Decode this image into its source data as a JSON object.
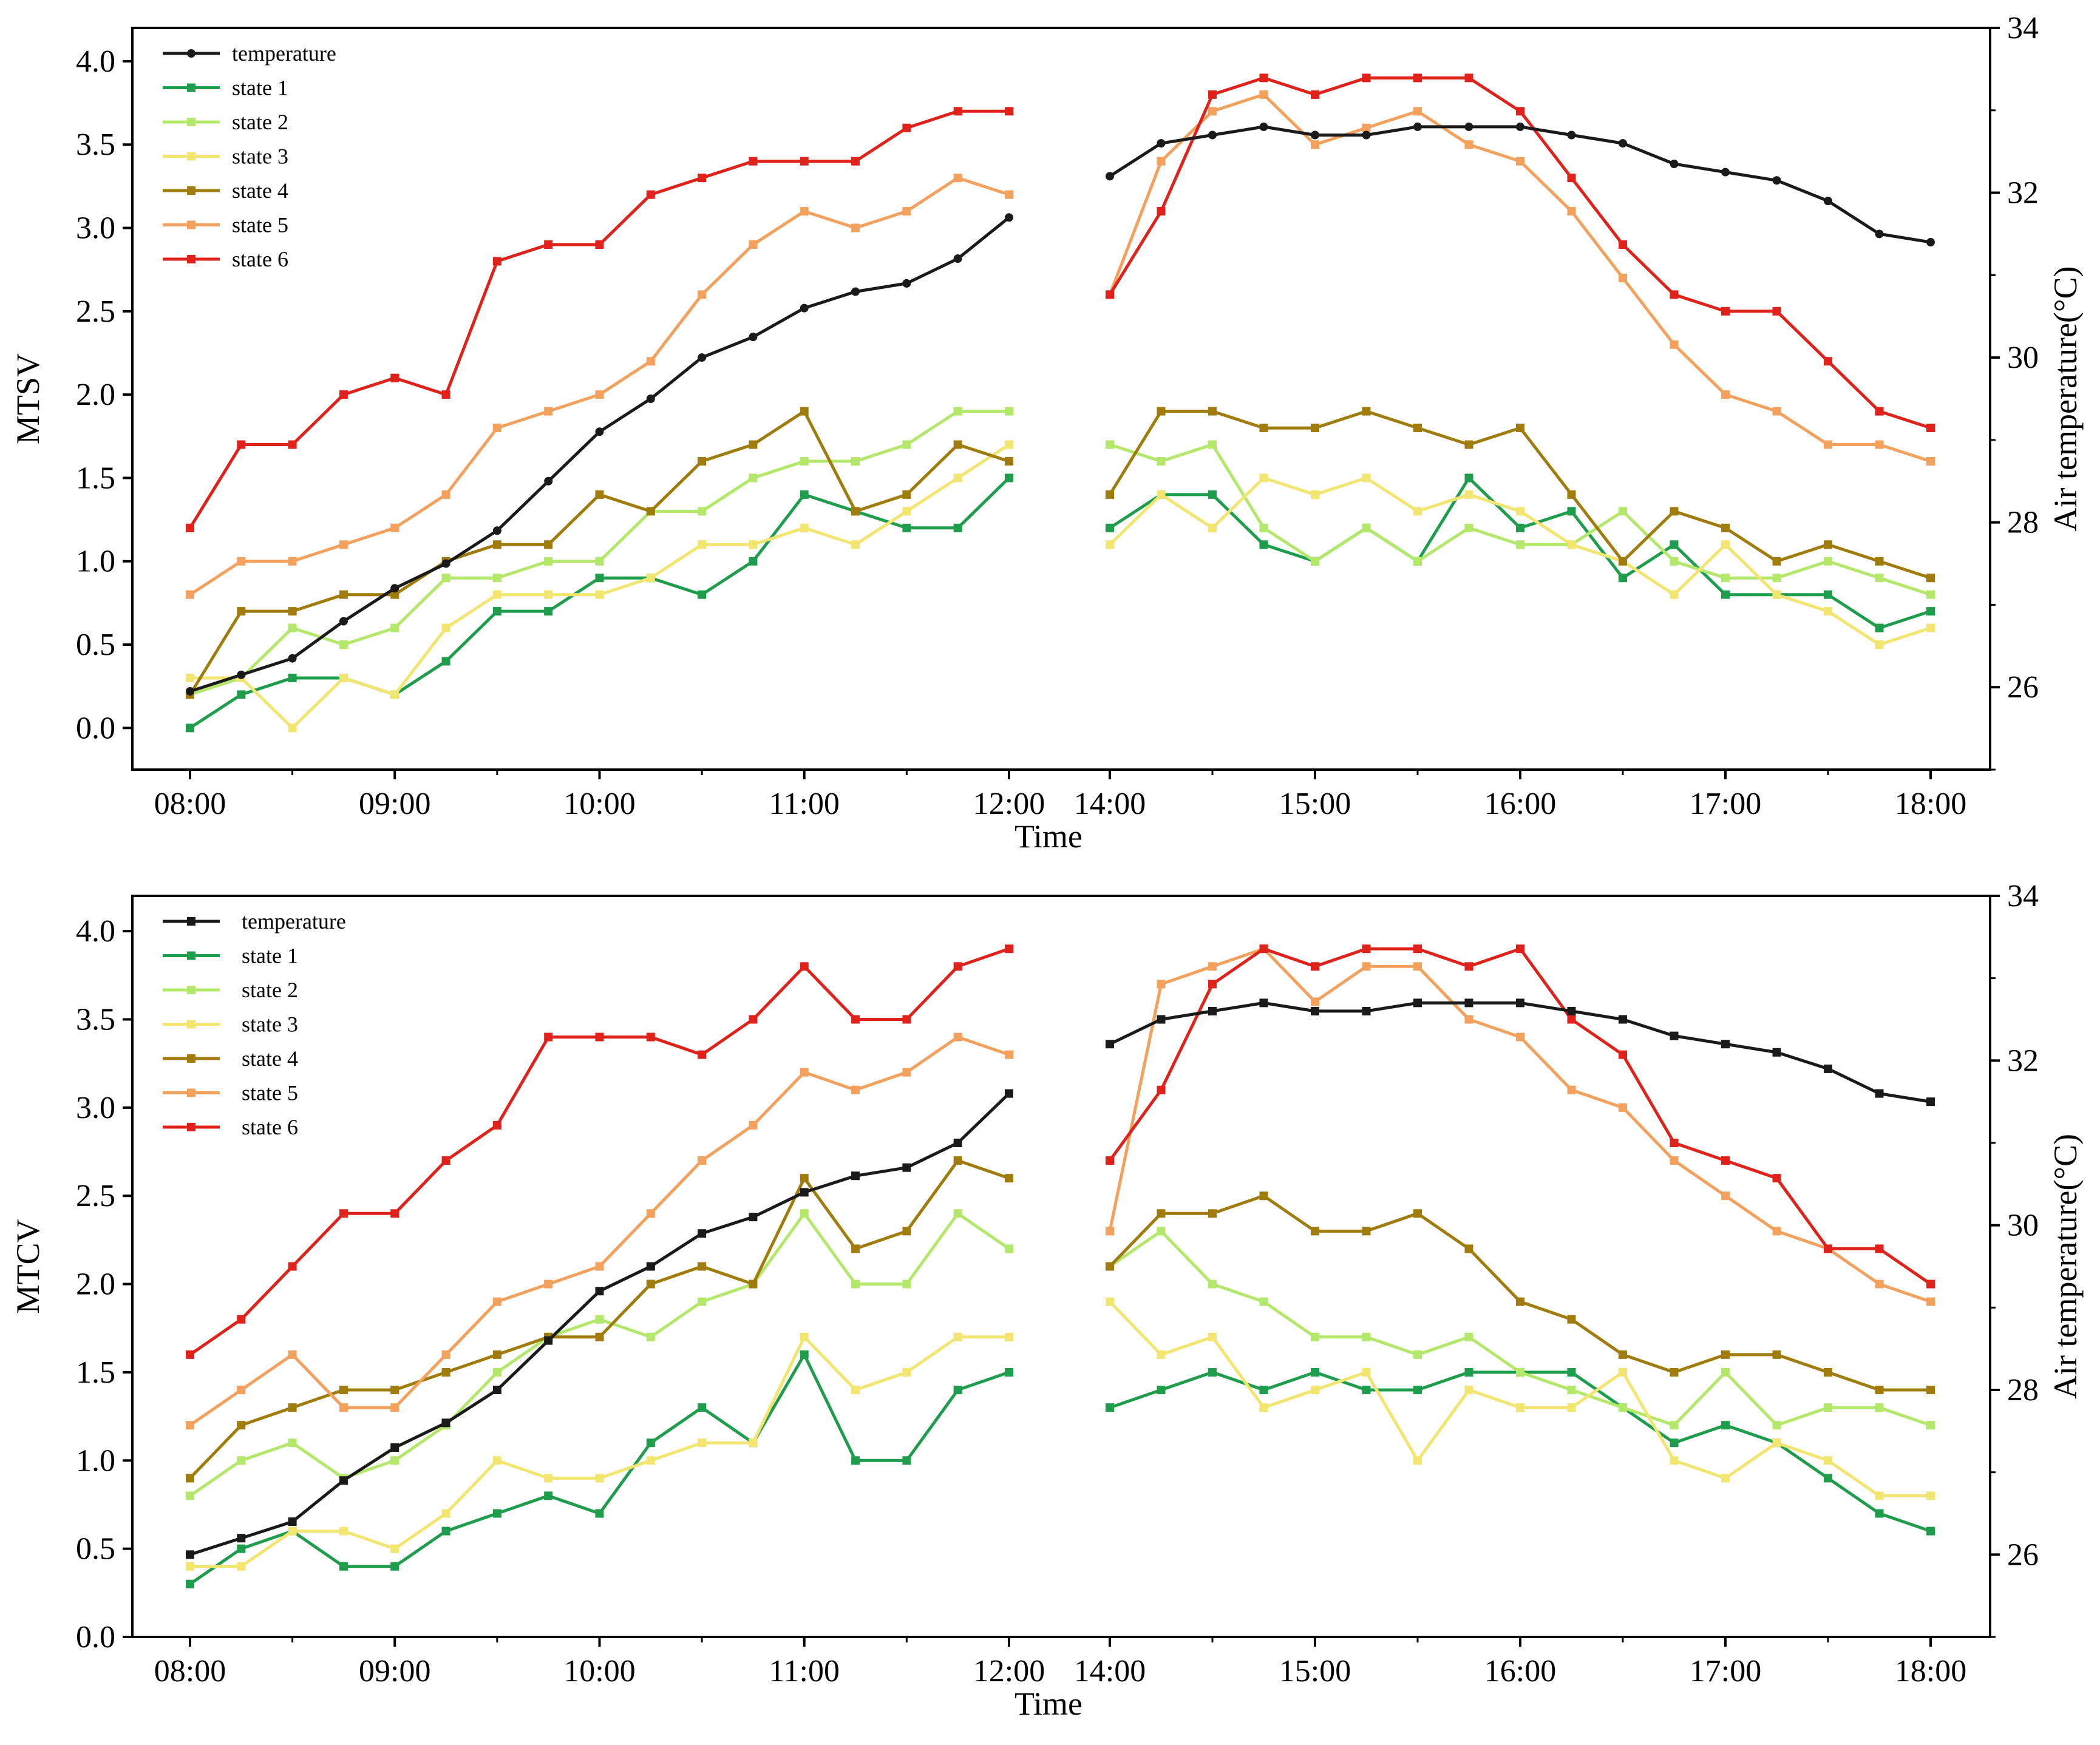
{
  "colors": {
    "temperature": "#1a1a1a",
    "state 1": "#1e9d4c",
    "state 2": "#b3e86a",
    "state 3": "#f2e670",
    "state 4": "#a07c0c",
    "state 5": "#f4a15e",
    "state 6": "#e0221b"
  },
  "chart_data": [
    {
      "type": "line",
      "ylabel": "MTSV",
      "y2label": "Air temperature(°C)",
      "xlabel": "Time",
      "ylim": [
        -0.25,
        4.2
      ],
      "y2lim": [
        25,
        34
      ],
      "yticks": [
        "0.0",
        "0.5",
        "1.0",
        "1.5",
        "2.0",
        "2.5",
        "3.0",
        "3.5",
        "4.0"
      ],
      "y2ticks": [
        "26",
        "28",
        "30",
        "32",
        "34"
      ],
      "xticks": {
        "morning": [
          "08:00",
          "09:00",
          "10:00",
          "11:00",
          "12:00"
        ],
        "afternoon": [
          "14:00",
          "15:00",
          "16:00",
          "17:00",
          "18:00"
        ]
      },
      "legend": [
        "temperature",
        "state 1",
        "state 2",
        "state 3",
        "state 4",
        "state 5",
        "state 6"
      ],
      "legend_position": "top-left",
      "x_morning": [
        "08:00",
        "08:15",
        "08:30",
        "08:45",
        "09:00",
        "09:15",
        "09:30",
        "09:45",
        "10:00",
        "10:15",
        "10:30",
        "10:45",
        "11:00",
        "11:15",
        "11:30",
        "11:45",
        "12:00"
      ],
      "x_afternoon": [
        "14:00",
        "14:15",
        "14:30",
        "14:45",
        "15:00",
        "15:15",
        "15:30",
        "15:45",
        "16:00",
        "16:15",
        "16:30",
        "16:45",
        "17:00",
        "17:15",
        "17:30",
        "17:45",
        "18:00"
      ],
      "series": [
        {
          "name": "temperature",
          "axis": "right",
          "marker": "circle",
          "morning": [
            25.95,
            26.15,
            26.35,
            26.8,
            27.2,
            27.5,
            27.9,
            28.5,
            29.1,
            29.5,
            30.0,
            30.25,
            30.6,
            30.8,
            30.9,
            31.2,
            31.7
          ],
          "afternoon": [
            32.2,
            32.6,
            32.7,
            32.8,
            32.7,
            32.7,
            32.8,
            32.8,
            32.8,
            32.7,
            32.6,
            32.35,
            32.25,
            32.15,
            31.9,
            31.5,
            31.4
          ]
        },
        {
          "name": "state 1",
          "axis": "left",
          "marker": "square",
          "morning": [
            0.0,
            0.2,
            0.3,
            0.3,
            0.2,
            0.4,
            0.7,
            0.7,
            0.9,
            0.9,
            0.8,
            1.0,
            1.4,
            1.3,
            1.2,
            1.2,
            1.5
          ],
          "afternoon": [
            1.2,
            1.4,
            1.4,
            1.1,
            1.0,
            1.2,
            1.0,
            1.5,
            1.2,
            1.3,
            0.9,
            1.1,
            0.8,
            0.8,
            0.8,
            0.6,
            0.7
          ]
        },
        {
          "name": "state 2",
          "axis": "left",
          "marker": "square",
          "morning": [
            0.2,
            0.3,
            0.6,
            0.5,
            0.6,
            0.9,
            0.9,
            1.0,
            1.0,
            1.3,
            1.3,
            1.5,
            1.6,
            1.6,
            1.7,
            1.9,
            1.9
          ],
          "afternoon": [
            1.7,
            1.6,
            1.7,
            1.2,
            1.0,
            1.2,
            1.0,
            1.2,
            1.1,
            1.1,
            1.3,
            1.0,
            0.9,
            0.9,
            1.0,
            0.9,
            0.8
          ]
        },
        {
          "name": "state 3",
          "axis": "left",
          "marker": "square",
          "morning": [
            0.3,
            0.3,
            0.0,
            0.3,
            0.2,
            0.6,
            0.8,
            0.8,
            0.8,
            0.9,
            1.1,
            1.1,
            1.2,
            1.1,
            1.3,
            1.5,
            1.7
          ],
          "afternoon": [
            1.1,
            1.4,
            1.2,
            1.5,
            1.4,
            1.5,
            1.3,
            1.4,
            1.3,
            1.1,
            1.0,
            0.8,
            1.1,
            0.8,
            0.7,
            0.5,
            0.6
          ]
        },
        {
          "name": "state 4",
          "axis": "left",
          "marker": "square",
          "morning": [
            0.2,
            0.7,
            0.7,
            0.8,
            0.8,
            1.0,
            1.1,
            1.1,
            1.4,
            1.3,
            1.6,
            1.7,
            1.9,
            1.3,
            1.4,
            1.7,
            1.6
          ],
          "afternoon": [
            1.4,
            1.9,
            1.9,
            1.8,
            1.8,
            1.9,
            1.8,
            1.7,
            1.8,
            1.4,
            1.0,
            1.3,
            1.2,
            1.0,
            1.1,
            1.0,
            0.9
          ]
        },
        {
          "name": "state 5",
          "axis": "left",
          "marker": "square",
          "morning": [
            0.8,
            1.0,
            1.0,
            1.1,
            1.2,
            1.4,
            1.8,
            1.9,
            2.0,
            2.2,
            2.6,
            2.9,
            3.1,
            3.0,
            3.1,
            3.3,
            3.2
          ],
          "afternoon": [
            2.6,
            3.4,
            3.7,
            3.8,
            3.5,
            3.6,
            3.7,
            3.5,
            3.4,
            3.1,
            2.7,
            2.3,
            2.0,
            1.9,
            1.7,
            1.7,
            1.6
          ]
        },
        {
          "name": "state 6",
          "axis": "left",
          "marker": "square",
          "morning": [
            1.2,
            1.7,
            1.7,
            2.0,
            2.1,
            2.0,
            2.8,
            2.9,
            2.9,
            3.2,
            3.3,
            3.4,
            3.4,
            3.4,
            3.6,
            3.7,
            3.7
          ],
          "afternoon": [
            2.6,
            3.1,
            3.8,
            3.9,
            3.8,
            3.9,
            3.9,
            3.9,
            3.7,
            3.3,
            2.9,
            2.6,
            2.5,
            2.5,
            2.2,
            1.9,
            1.8
          ]
        }
      ]
    },
    {
      "type": "line",
      "ylabel": "MTCV",
      "y2label": "Air temperature(°C)",
      "xlabel": "Time",
      "ylim": [
        0,
        4.2
      ],
      "y2lim": [
        25,
        34
      ],
      "yticks": [
        "0.0",
        "0.5",
        "1.0",
        "1.5",
        "2.0",
        "2.5",
        "3.0",
        "3.5",
        "4.0"
      ],
      "y2ticks": [
        "26",
        "28",
        "30",
        "32",
        "34"
      ],
      "xticks": {
        "morning": [
          "08:00",
          "09:00",
          "10:00",
          "11:00",
          "12:00"
        ],
        "afternoon": [
          "14:00",
          "15:00",
          "16:00",
          "17:00",
          "18:00"
        ]
      },
      "legend": [
        "temperature",
        "state 1",
        "state 2",
        "state 3",
        "state 4",
        "state 5",
        "state 6"
      ],
      "legend_position": "top-left",
      "x_morning": [
        "08:00",
        "08:15",
        "08:30",
        "08:45",
        "09:00",
        "09:15",
        "09:30",
        "09:45",
        "10:00",
        "10:15",
        "10:30",
        "10:45",
        "11:00",
        "11:15",
        "11:30",
        "11:45",
        "12:00"
      ],
      "x_afternoon": [
        "14:00",
        "14:15",
        "14:30",
        "14:45",
        "15:00",
        "15:15",
        "15:30",
        "15:45",
        "16:00",
        "16:15",
        "16:30",
        "16:45",
        "17:00",
        "17:15",
        "17:30",
        "17:45",
        "18:00"
      ],
      "series": [
        {
          "name": "temperature",
          "axis": "right",
          "marker": "square",
          "morning": [
            26.0,
            26.2,
            26.4,
            26.9,
            27.3,
            27.6,
            28.0,
            28.6,
            29.2,
            29.5,
            29.9,
            30.1,
            30.4,
            30.6,
            30.7,
            31.0,
            31.6
          ],
          "afternoon": [
            32.2,
            32.5,
            32.6,
            32.7,
            32.6,
            32.6,
            32.7,
            32.7,
            32.7,
            32.6,
            32.5,
            32.3,
            32.2,
            32.1,
            31.9,
            31.6,
            31.5
          ]
        },
        {
          "name": "state 1",
          "axis": "left",
          "marker": "square",
          "morning": [
            0.3,
            0.5,
            0.6,
            0.4,
            0.4,
            0.6,
            0.7,
            0.8,
            0.7,
            1.1,
            1.3,
            1.1,
            1.6,
            1.0,
            1.0,
            1.4,
            1.5
          ],
          "afternoon": [
            1.3,
            1.4,
            1.5,
            1.4,
            1.5,
            1.4,
            1.4,
            1.5,
            1.5,
            1.5,
            1.3,
            1.1,
            1.2,
            1.1,
            0.9,
            0.7,
            0.6
          ]
        },
        {
          "name": "state 2",
          "axis": "left",
          "marker": "square",
          "morning": [
            0.8,
            1.0,
            1.1,
            0.9,
            1.0,
            1.2,
            1.5,
            1.7,
            1.8,
            1.7,
            1.9,
            2.0,
            2.4,
            2.0,
            2.0,
            2.4,
            2.2
          ],
          "afternoon": [
            2.1,
            2.3,
            2.0,
            1.9,
            1.7,
            1.7,
            1.6,
            1.7,
            1.5,
            1.4,
            1.3,
            1.2,
            1.5,
            1.2,
            1.3,
            1.3,
            1.2
          ]
        },
        {
          "name": "state 3",
          "axis": "left",
          "marker": "square",
          "morning": [
            0.4,
            0.4,
            0.6,
            0.6,
            0.5,
            0.7,
            1.0,
            0.9,
            0.9,
            1.0,
            1.1,
            1.1,
            1.7,
            1.4,
            1.5,
            1.7,
            1.7
          ],
          "afternoon": [
            1.9,
            1.6,
            1.7,
            1.3,
            1.4,
            1.5,
            1.0,
            1.4,
            1.3,
            1.3,
            1.5,
            1.0,
            0.9,
            1.1,
            1.0,
            0.8,
            0.8
          ]
        },
        {
          "name": "state 4",
          "axis": "left",
          "marker": "square",
          "morning": [
            0.9,
            1.2,
            1.3,
            1.4,
            1.4,
            1.5,
            1.6,
            1.7,
            1.7,
            2.0,
            2.1,
            2.0,
            2.6,
            2.2,
            2.3,
            2.7,
            2.6
          ],
          "afternoon": [
            2.1,
            2.4,
            2.4,
            2.5,
            2.3,
            2.3,
            2.4,
            2.2,
            1.9,
            1.8,
            1.6,
            1.5,
            1.6,
            1.6,
            1.5,
            1.4,
            1.4
          ]
        },
        {
          "name": "state 5",
          "axis": "left",
          "marker": "square",
          "morning": [
            1.2,
            1.4,
            1.6,
            1.3,
            1.3,
            1.6,
            1.9,
            2.0,
            2.1,
            2.4,
            2.7,
            2.9,
            3.2,
            3.1,
            3.2,
            3.4,
            3.3
          ],
          "afternoon": [
            2.3,
            3.7,
            3.8,
            3.9,
            3.6,
            3.8,
            3.8,
            3.5,
            3.4,
            3.1,
            3.0,
            2.7,
            2.5,
            2.3,
            2.2,
            2.0,
            1.9
          ]
        },
        {
          "name": "state 6",
          "axis": "left",
          "marker": "square",
          "morning": [
            1.6,
            1.8,
            2.1,
            2.4,
            2.4,
            2.7,
            2.9,
            3.4,
            3.4,
            3.4,
            3.3,
            3.5,
            3.8,
            3.5,
            3.5,
            3.8,
            3.9
          ],
          "afternoon": [
            2.7,
            3.1,
            3.7,
            3.9,
            3.8,
            3.9,
            3.9,
            3.8,
            3.9,
            3.5,
            3.3,
            2.8,
            2.7,
            2.6,
            2.2,
            2.2,
            2.0
          ]
        }
      ]
    }
  ]
}
